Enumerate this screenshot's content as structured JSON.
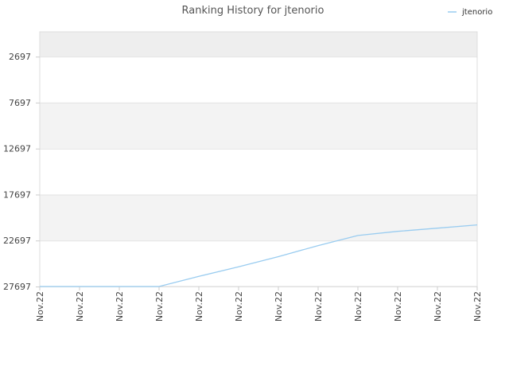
{
  "chart_data": {
    "type": "line",
    "title": "Ranking History for jtenorio",
    "xlabel": "",
    "ylabel": "",
    "y_reversed": true,
    "ylim": [
      27697,
      0
    ],
    "y_ticks": [
      2697,
      7697,
      12697,
      17697,
      22697,
      27697
    ],
    "y_tick_labels": [
      "2697",
      "7697",
      "12697",
      "17697",
      "22697",
      "27697"
    ],
    "x": [
      "Nov.22",
      "Nov.22",
      "Nov.22",
      "Nov.22",
      "Nov.22",
      "Nov.22",
      "Nov.22",
      "Nov.22",
      "Nov.22",
      "Nov.22",
      "Nov.22",
      "Nov.22"
    ],
    "series": [
      {
        "name": "jtenorio",
        "color": "#99ccf0",
        "values": [
          27697,
          27697,
          27697,
          27697,
          26600,
          25550,
          24450,
          23250,
          22150,
          21700,
          21350,
          21000
        ]
      }
    ],
    "legend_position": "top-right",
    "grid": true,
    "band_colors": [
      "#eeeeee",
      "#ffffff",
      "#f3f3f3"
    ]
  }
}
